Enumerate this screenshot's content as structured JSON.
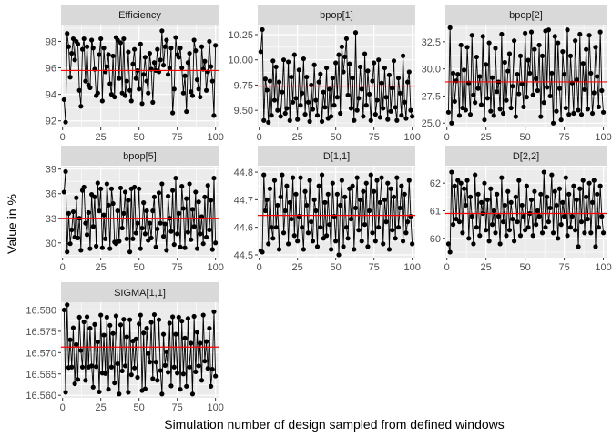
{
  "figure": {
    "xlabel": "Simulation number of design sampled from defined windows",
    "ylabel": "Value in %",
    "colors": {
      "panel_bg": "#EBEBEB",
      "strip_bg": "#D9D9D9",
      "grid": "#FFFFFF",
      "line": "#000000",
      "mean_line": "#FF0000",
      "tick_text": "#4D4D4D"
    }
  },
  "chart_data": [
    {
      "type": "line",
      "title": "Efficiency",
      "mean": 95.8,
      "xlim": [
        -1,
        102
      ],
      "ylim": [
        91.5,
        99.2
      ],
      "x_ticks": [
        0,
        25,
        50,
        75,
        100
      ],
      "x_tick_labels": [
        "0",
        "25",
        "50",
        "75",
        "100"
      ],
      "y_ticks": [
        92,
        94,
        96,
        98
      ],
      "y_tick_labels": [
        "92",
        "94",
        "96",
        "98"
      ],
      "values": [
        93.6,
        91.9,
        98.6,
        97.6,
        95.3,
        97.1,
        98.2,
        96.6,
        98.0,
        97.8,
        94.3,
        93.1,
        97.4,
        98.2,
        95.0,
        97.6,
        94.7,
        94.5,
        98.1,
        97.5,
        95.9,
        93.9,
        94.1,
        97.0,
        98.2,
        93.5,
        97.5,
        95.7,
        96.1,
        97.0,
        94.8,
        94.0,
        96.9,
        93.8,
        98.3,
        98.1,
        95.2,
        97.9,
        94.1,
        98.2,
        93.9,
        95.0,
        97.2,
        94.3,
        93.5,
        96.3,
        97.4,
        95.2,
        95.8,
        94.4,
        97.8,
        93.3,
        95.5,
        96.8,
        95.0,
        94.1,
        97.1,
        95.9,
        93.4,
        96.4,
        95.8,
        97.4,
        95.7,
        96.6,
        98.8,
        96.2,
        97.6,
        98.1,
        95.5,
        96.0,
        97.5,
        92.6,
        94.4,
        98.3,
        97.0,
        96.8,
        97.5,
        96.0,
        94.1,
        95.4,
        92.7,
        96.4,
        97.1,
        94.2,
        93.9,
        98.1,
        97.3,
        95.1,
        94.4,
        93.8,
        97.6,
        95.9,
        96.5,
        94.3,
        95.7,
        98.0,
        96.1,
        95.0,
        92.4,
        97.7
      ]
    },
    {
      "type": "line",
      "title": "bpop[1]",
      "mean": 9.74,
      "xlim": [
        -1,
        102
      ],
      "ylim": [
        9.33,
        10.34
      ],
      "x_ticks": [
        0,
        25,
        50,
        75,
        100
      ],
      "x_tick_labels": [
        "0",
        "25",
        "50",
        "75",
        "100"
      ],
      "y_ticks": [
        9.5,
        9.75,
        10.0,
        10.25
      ],
      "y_tick_labels": [
        "9.50",
        "9.75",
        "10.00",
        "10.25"
      ],
      "values": [
        10.08,
        10.3,
        9.4,
        9.81,
        9.7,
        9.38,
        9.79,
        9.45,
        9.99,
        9.6,
        9.93,
        9.5,
        9.78,
        9.44,
        9.68,
        10.0,
        9.47,
        9.52,
        9.98,
        9.4,
        9.83,
        9.58,
        10.05,
        9.62,
        9.41,
        9.9,
        9.55,
        9.67,
        10.01,
        9.46,
        9.83,
        9.58,
        9.39,
        9.75,
        9.51,
        9.95,
        9.6,
        9.45,
        9.78,
        9.86,
        9.39,
        9.68,
        9.53,
        9.92,
        9.42,
        9.71,
        9.44,
        9.82,
        9.55,
        9.97,
        9.63,
        10.05,
        9.47,
        10.13,
        9.88,
        10.03,
        10.21,
        9.65,
        9.96,
        9.52,
        9.82,
        9.4,
        10.27,
        9.5,
        9.62,
        9.93,
        9.71,
        9.44,
        10.06,
        9.55,
        9.89,
        9.66,
        9.4,
        9.79,
        9.97,
        9.46,
        9.6,
        10.0,
        9.43,
        9.77,
        9.52,
        9.92,
        9.63,
        9.41,
        9.85,
        9.49,
        9.72,
        9.99,
        9.53,
        9.4,
        9.82,
        9.67,
        9.45,
        10.04,
        9.58,
        9.42,
        9.78,
        9.88,
        9.5,
        9.44
      ]
    },
    {
      "type": "line",
      "title": "bpop[2]",
      "mean": 28.8,
      "xlim": [
        -1,
        102
      ],
      "ylim": [
        24.6,
        34.0
      ],
      "x_ticks": [
        0,
        25,
        50,
        75,
        100
      ],
      "x_tick_labels": [
        "0",
        "25",
        "50",
        "75",
        "100"
      ],
      "y_ticks": [
        25.0,
        27.5,
        30.0,
        32.5
      ],
      "y_tick_labels": [
        "25.0",
        "27.5",
        "30.0",
        "32.5"
      ],
      "values": [
        26.0,
        33.8,
        25.0,
        29.6,
        27.0,
        28.9,
        29.5,
        25.7,
        32.2,
        26.4,
        29.9,
        26.2,
        32.0,
        28.7,
        25.8,
        33.1,
        27.6,
        26.9,
        31.1,
        28.2,
        29.3,
        26.7,
        33.0,
        25.3,
        30.4,
        27.3,
        32.4,
        26.1,
        29.2,
        25.7,
        31.9,
        27.9,
        28.8,
        26.3,
        33.2,
        25.9,
        30.6,
        27.1,
        29.8,
        31.4,
        26.4,
        28.4,
        32.6,
        25.6,
        29.5,
        27.7,
        31.2,
        28.6,
        26.5,
        33.3,
        27.4,
        30.8,
        29.6,
        33.4,
        27.6,
        31.8,
        29.1,
        28.0,
        32.2,
        25.6,
        31.2,
        26.9,
        33.5,
        28.3,
        33.6,
        27.5,
        29.6,
        25.0,
        33.0,
        26.1,
        32.4,
        28.2,
        25.3,
        31.6,
        29.5,
        26.4,
        33.6,
        25.8,
        31.2,
        28.7,
        25.9,
        32.6,
        29.0,
        26.2,
        33.2,
        25.8,
        30.5,
        28.1,
        31.8,
        26.3,
        33.1,
        29.6,
        25.9,
        27.8,
        32.0,
        29.3,
        26.5,
        33.4,
        28.0,
        26.0
      ]
    },
    {
      "type": "line",
      "title": "bpop[5]",
      "mean": 33.0,
      "xlim": [
        -1,
        102
      ],
      "ylim": [
        28.2,
        39.3
      ],
      "x_ticks": [
        0,
        25,
        50,
        75,
        100
      ],
      "x_tick_labels": [
        "0",
        "25",
        "50",
        "75",
        "100"
      ],
      "y_ticks": [
        30,
        33,
        36,
        39
      ],
      "y_tick_labels": [
        "30",
        "33",
        "36",
        "39"
      ],
      "values": [
        36.2,
        38.7,
        28.9,
        33.6,
        29.9,
        31.6,
        33.8,
        30.7,
        35.5,
        30.6,
        33.0,
        29.1,
        36.4,
        36.8,
        32.4,
        31.0,
        33.7,
        29.3,
        35.9,
        32.0,
        35.6,
        29.6,
        37.3,
        33.9,
        36.6,
        29.4,
        33.4,
        30.5,
        37.2,
        34.6,
        29.3,
        36.6,
        34.8,
        30.1,
        29.9,
        33.9,
        30.2,
        36.7,
        31.8,
        33.6,
        36.2,
        30.5,
        35.2,
        28.9,
        36.6,
        30.5,
        36.8,
        31.2,
        32.4,
        36.6,
        29.3,
        31.8,
        34.9,
        31.1,
        33.9,
        30.3,
        32.4,
        30.6,
        33.9,
        35.6,
        29.5,
        31.7,
        36.1,
        32.4,
        37.2,
        30.8,
        32.3,
        29.1,
        35.7,
        33.0,
        31.4,
        36.4,
        29.8,
        37.9,
        31.1,
        33.6,
        29.5,
        36.9,
        34.2,
        29.4,
        35.4,
        31.3,
        37.2,
        30.4,
        34.1,
        32.0,
        36.2,
        29.3,
        35.0,
        31.1,
        33.2,
        29.9,
        35.6,
        30.7,
        37.0,
        31.6,
        35.2,
        29.2,
        37.9,
        30.0
      ]
    },
    {
      "type": "line",
      "title": "D[1,1]",
      "mean": 44.643,
      "xlim": [
        -1,
        102
      ],
      "ylim": [
        44.49,
        44.82
      ],
      "x_ticks": [
        0,
        25,
        50,
        75,
        100
      ],
      "x_tick_labels": [
        "0",
        "25",
        "50",
        "75",
        "100"
      ],
      "y_ticks": [
        44.5,
        44.6,
        44.7,
        44.8
      ],
      "y_tick_labels": [
        "44.5",
        "44.6",
        "44.7",
        "44.8"
      ],
      "values": [
        44.515,
        44.51,
        44.79,
        44.66,
        44.7,
        44.54,
        44.74,
        44.6,
        44.56,
        44.77,
        44.6,
        44.68,
        44.52,
        44.71,
        44.79,
        44.58,
        44.66,
        44.75,
        44.54,
        44.69,
        44.63,
        44.78,
        44.57,
        44.72,
        44.55,
        44.64,
        44.78,
        44.6,
        44.52,
        44.73,
        44.68,
        44.58,
        44.77,
        44.62,
        44.55,
        44.7,
        44.66,
        44.53,
        44.75,
        44.6,
        44.79,
        44.56,
        44.69,
        44.57,
        44.72,
        44.61,
        44.52,
        44.76,
        44.64,
        44.55,
        44.72,
        44.5,
        44.68,
        44.77,
        44.53,
        44.71,
        44.6,
        44.56,
        44.74,
        44.63,
        44.75,
        44.52,
        44.67,
        44.78,
        44.59,
        44.7,
        44.55,
        44.73,
        44.61,
        44.76,
        44.53,
        44.66,
        44.79,
        44.58,
        44.73,
        44.55,
        44.77,
        44.6,
        44.69,
        44.78,
        44.54,
        44.7,
        44.62,
        44.76,
        44.52,
        44.74,
        44.59,
        44.71,
        44.56,
        44.78,
        44.6,
        44.67,
        44.75,
        44.55,
        44.72,
        44.58,
        44.62,
        44.77,
        44.64,
        44.54
      ]
    },
    {
      "type": "line",
      "title": "D[2,2]",
      "mean": 60.9,
      "xlim": [
        -1,
        102
      ],
      "ylim": [
        59.3,
        62.6
      ],
      "x_ticks": [
        0,
        25,
        50,
        75,
        100
      ],
      "x_tick_labels": [
        "0",
        "25",
        "50",
        "75",
        "100"
      ],
      "y_ticks": [
        60,
        61,
        62
      ],
      "y_tick_labels": [
        "60",
        "61",
        "62"
      ],
      "values": [
        59.8,
        59.5,
        62.4,
        60.5,
        61.9,
        60.7,
        62.1,
        60.6,
        62.0,
        60.2,
        61.8,
        61.2,
        62.1,
        60.0,
        61.5,
        60.8,
        59.8,
        62.3,
        60.4,
        61.6,
        60.1,
        61.3,
        60.9,
        62.0,
        60.3,
        61.4,
        59.9,
        61.8,
        60.5,
        61.0,
        60.2,
        61.6,
        60.8,
        59.8,
        62.2,
        60.6,
        61.2,
        60.1,
        61.7,
        60.3,
        61.3,
        60.7,
        59.9,
        61.5,
        60.6,
        62.1,
        60.1,
        61.2,
        60.8,
        60.3,
        61.9,
        60.4,
        60.9,
        61.4,
        60.1,
        61.7,
        60.5,
        61.0,
        60.8,
        61.6,
        60.2,
        62.4,
        60.4,
        61.5,
        60.6,
        61.1,
        62.3,
        60.2,
        61.7,
        61.2,
        60.0,
        61.8,
        60.5,
        61.3,
        60.8,
        62.2,
        60.1,
        61.6,
        60.4,
        60.8,
        61.9,
        60.3,
        61.4,
        59.7,
        61.8,
        60.6,
        62.1,
        60.2,
        61.5,
        60.7,
        62.0,
        60.2,
        61.3,
        62.1,
        59.7,
        61.6,
        60.4,
        61.9,
        60.8,
        60.2
      ]
    },
    {
      "type": "line",
      "title": "SIGMA[1,1]",
      "mean": 16.5713,
      "xlim": [
        -1,
        102
      ],
      "ylim": [
        16.5594,
        16.5818
      ],
      "x_ticks": [
        0,
        25,
        50,
        75,
        100
      ],
      "x_tick_labels": [
        "0",
        "25",
        "50",
        "75",
        "100"
      ],
      "y_ticks": [
        16.56,
        16.565,
        16.57,
        16.575,
        16.58
      ],
      "y_tick_labels": [
        "16.560",
        "16.565",
        "16.570",
        "16.575",
        "16.580"
      ],
      "values": [
        16.58,
        16.5607,
        16.5812,
        16.5665,
        16.573,
        16.5666,
        16.5758,
        16.5627,
        16.5719,
        16.5637,
        16.5783,
        16.5705,
        16.5666,
        16.5772,
        16.5635,
        16.5784,
        16.5666,
        16.5757,
        16.5669,
        16.5619,
        16.5766,
        16.5667,
        16.5725,
        16.5608,
        16.5788,
        16.5652,
        16.5741,
        16.5651,
        16.5783,
        16.5614,
        16.5764,
        16.5666,
        16.5745,
        16.5629,
        16.5786,
        16.5674,
        16.5603,
        16.5765,
        16.5657,
        16.5778,
        16.5669,
        16.5737,
        16.5607,
        16.5777,
        16.5648,
        16.5727,
        16.5664,
        16.5732,
        16.5642,
        16.5767,
        16.5788,
        16.5611,
        16.5746,
        16.5615,
        16.5757,
        16.5698,
        16.5678,
        16.5771,
        16.5639,
        16.5789,
        16.5678,
        16.5635,
        16.5777,
        16.5658,
        16.5603,
        16.5743,
        16.567,
        16.5702,
        16.5654,
        16.5769,
        16.5622,
        16.5784,
        16.5666,
        16.5743,
        16.5652,
        16.5783,
        16.5614,
        16.5774,
        16.565,
        16.5734,
        16.5621,
        16.578,
        16.5666,
        16.5722,
        16.5603,
        16.5785,
        16.5655,
        16.5748,
        16.5669,
        16.5722,
        16.5635,
        16.5788,
        16.568,
        16.5726,
        16.5663,
        16.5757,
        16.5621,
        16.5661,
        16.5796,
        16.5645
      ]
    }
  ]
}
